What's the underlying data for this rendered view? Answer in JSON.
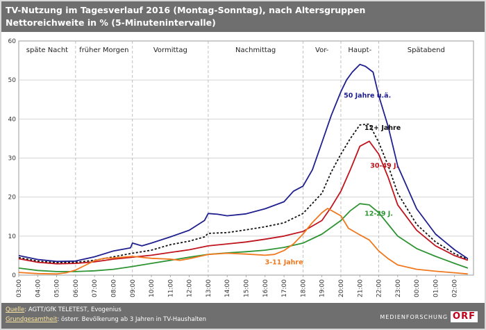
{
  "header": {
    "title_line1": "TV-Nutzung im Tagesverlauf 2016 (Montag-Sonntag), nach Altersgruppen",
    "title_line2": "Nettoreichweite in % (5-Minutenintervalle)"
  },
  "footer": {
    "source_label": "Quelle",
    "source_text": ": AGTT/GfK TELETEST, Evogenius",
    "population_label": "Grundgesamtheit",
    "population_text": ": österr. Bevölkerung ab 3 Jahren in TV-Haushalten",
    "brand_text": "MEDIENFORSCHUNG",
    "logo_text": "ORF"
  },
  "chart_data": {
    "type": "line",
    "title": "TV-Nutzung im Tagesverlauf 2016 (Montag-Sonntag), nach Altersgruppen",
    "subtitle": "Nettoreichweite in % (5-Minutenintervalle)",
    "ylim": [
      0,
      60
    ],
    "yticks": [
      0,
      10,
      20,
      30,
      40,
      50,
      60
    ],
    "x_labels": [
      "03:00",
      "04:00",
      "05:00",
      "06:00",
      "07:00",
      "08:00",
      "09:00",
      "10:00",
      "11:00",
      "12:00",
      "13:00",
      "14:00",
      "15:00",
      "16:00",
      "17:00",
      "18:00",
      "19:00",
      "20:00",
      "21:00",
      "22:00",
      "23:00",
      "00:00",
      "01:00",
      "02:00"
    ],
    "grid": true,
    "periods": [
      {
        "label": "späte Nacht",
        "from": 3,
        "to": 6
      },
      {
        "label": "früher Morgen",
        "from": 6,
        "to": 9
      },
      {
        "label": "Vormittag",
        "from": 9,
        "to": 13
      },
      {
        "label": "Nachmittag",
        "from": 13,
        "to": 18
      },
      {
        "label": "Vor-",
        "from": 18,
        "to": 20
      },
      {
        "label": "Haupt-",
        "from": 20,
        "to": 22
      },
      {
        "label": "Spätabend",
        "from": 22,
        "to": 27
      }
    ],
    "series": [
      {
        "name": "50 Jahre u.ä.",
        "color": "#1f1f8f",
        "dash": false,
        "label_at": [
          21.4,
          45.5
        ],
        "points": [
          [
            3,
            5
          ],
          [
            4,
            4
          ],
          [
            5,
            3.5
          ],
          [
            6,
            3.6
          ],
          [
            7,
            4.7
          ],
          [
            8,
            6.2
          ],
          [
            8.9,
            7
          ],
          [
            9,
            8.2
          ],
          [
            9.5,
            7.5
          ],
          [
            10,
            8.2
          ],
          [
            11,
            9.8
          ],
          [
            12,
            11.5
          ],
          [
            12.8,
            14
          ],
          [
            13,
            15.8
          ],
          [
            13.5,
            15.6
          ],
          [
            14,
            15.2
          ],
          [
            15,
            15.7
          ],
          [
            16,
            17
          ],
          [
            17,
            18.8
          ],
          [
            17.5,
            21.5
          ],
          [
            18,
            22.8
          ],
          [
            18.5,
            27
          ],
          [
            19,
            34
          ],
          [
            19.5,
            41
          ],
          [
            20,
            47
          ],
          [
            20.3,
            50
          ],
          [
            20.6,
            52
          ],
          [
            21,
            54
          ],
          [
            21.3,
            53.5
          ],
          [
            21.7,
            52
          ],
          [
            22,
            46
          ],
          [
            22.5,
            38
          ],
          [
            23,
            28
          ],
          [
            24,
            17
          ],
          [
            25,
            10.5
          ],
          [
            26,
            6.5
          ],
          [
            26.7,
            4.2
          ]
        ]
      },
      {
        "name": "12+ Jahre",
        "color": "#111111",
        "dash": true,
        "label_at": [
          22.2,
          37.2
        ],
        "points": [
          [
            3,
            4.5
          ],
          [
            4,
            3.6
          ],
          [
            5,
            3.2
          ],
          [
            6,
            3.3
          ],
          [
            7,
            3.8
          ],
          [
            8,
            4.7
          ],
          [
            9,
            5.6
          ],
          [
            10,
            6.4
          ],
          [
            11,
            7.8
          ],
          [
            12,
            8.7
          ],
          [
            12.8,
            9.8
          ],
          [
            13,
            10.7
          ],
          [
            14,
            10.9
          ],
          [
            15,
            11.6
          ],
          [
            16,
            12.4
          ],
          [
            17,
            13.4
          ],
          [
            18,
            15.8
          ],
          [
            19,
            21
          ],
          [
            19.5,
            26.5
          ],
          [
            20,
            31
          ],
          [
            20.5,
            35
          ],
          [
            21,
            38.5
          ],
          [
            21.5,
            38.7
          ],
          [
            22,
            34
          ],
          [
            22.5,
            28
          ],
          [
            23,
            21
          ],
          [
            24,
            13
          ],
          [
            25,
            8.5
          ],
          [
            26,
            5.5
          ],
          [
            26.7,
            4
          ]
        ]
      },
      {
        "name": "30-49 J.",
        "color": "#c0141e",
        "dash": false,
        "label_at": [
          22.3,
          27.5
        ],
        "points": [
          [
            3,
            4.2
          ],
          [
            4,
            3.3
          ],
          [
            5,
            2.9
          ],
          [
            6,
            3
          ],
          [
            7,
            3.4
          ],
          [
            8,
            4.1
          ],
          [
            9,
            4.6
          ],
          [
            10,
            5.1
          ],
          [
            11,
            5.8
          ],
          [
            12,
            6.5
          ],
          [
            13,
            7.5
          ],
          [
            14,
            8
          ],
          [
            15,
            8.5
          ],
          [
            16,
            9.2
          ],
          [
            17,
            10
          ],
          [
            18,
            11.2
          ],
          [
            19,
            14
          ],
          [
            19.5,
            17.5
          ],
          [
            20,
            21.5
          ],
          [
            20.5,
            27
          ],
          [
            21,
            33
          ],
          [
            21.5,
            34.3
          ],
          [
            22,
            31
          ],
          [
            22.5,
            25
          ],
          [
            23,
            18
          ],
          [
            24,
            11.5
          ],
          [
            25,
            7.5
          ],
          [
            26,
            5
          ],
          [
            26.7,
            3.8
          ]
        ]
      },
      {
        "name": "12-29 J.",
        "color": "#2e9433",
        "dash": false,
        "label_at": [
          22.0,
          15.2
        ],
        "points": [
          [
            3,
            1.8
          ],
          [
            4,
            1.2
          ],
          [
            5,
            0.9
          ],
          [
            6,
            0.9
          ],
          [
            7,
            1.1
          ],
          [
            8,
            1.5
          ],
          [
            9,
            2.2
          ],
          [
            10,
            3
          ],
          [
            11,
            3.8
          ],
          [
            12,
            4.6
          ],
          [
            13,
            5.3
          ],
          [
            14,
            5.7
          ],
          [
            15,
            6
          ],
          [
            16,
            6.4
          ],
          [
            17,
            7.1
          ],
          [
            18,
            8.2
          ],
          [
            19,
            10.5
          ],
          [
            20,
            14
          ],
          [
            20.5,
            16.5
          ],
          [
            21,
            18.3
          ],
          [
            21.5,
            18
          ],
          [
            22,
            16
          ],
          [
            22.5,
            13
          ],
          [
            23,
            10
          ],
          [
            24,
            6.8
          ],
          [
            25,
            4.8
          ],
          [
            26,
            3
          ],
          [
            26.7,
            1.8
          ]
        ]
      },
      {
        "name": "3-11 Jahre",
        "color": "#f0781e",
        "dash": false,
        "label_at": [
          17.0,
          2.8
        ],
        "points": [
          [
            3,
            0.7
          ],
          [
            4,
            0.4
          ],
          [
            5,
            0.3
          ],
          [
            5.5,
            0.6
          ],
          [
            6,
            1.3
          ],
          [
            6.5,
            2.5
          ],
          [
            7,
            3.7
          ],
          [
            7.5,
            4.3
          ],
          [
            8,
            4.4
          ],
          [
            9,
            4.8
          ],
          [
            10,
            4.3
          ],
          [
            11,
            4.1
          ],
          [
            11.5,
            3.8
          ],
          [
            12,
            4.2
          ],
          [
            13,
            5.3
          ],
          [
            14,
            5.6
          ],
          [
            15,
            5.4
          ],
          [
            16,
            5.1
          ],
          [
            16.5,
            5.3
          ],
          [
            17,
            6.3
          ],
          [
            17.5,
            8
          ],
          [
            18,
            10.5
          ],
          [
            18.5,
            13.5
          ],
          [
            19,
            16
          ],
          [
            19.3,
            17.1
          ],
          [
            19.6,
            16.3
          ],
          [
            20,
            15.2
          ],
          [
            20.4,
            12
          ],
          [
            21,
            10.3
          ],
          [
            21.5,
            9
          ],
          [
            22,
            6.2
          ],
          [
            22.5,
            4.2
          ],
          [
            23,
            2.6
          ],
          [
            24,
            1.5
          ],
          [
            25,
            1
          ],
          [
            26,
            0.6
          ],
          [
            26.7,
            0.3
          ]
        ]
      }
    ]
  }
}
